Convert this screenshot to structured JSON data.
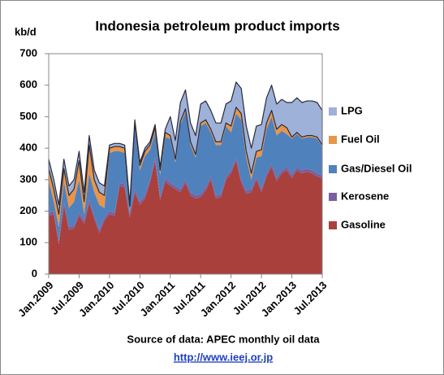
{
  "chart_data": {
    "type": "stacked_area",
    "title": "Indonesia petroleum product imports",
    "y_label": "kb/d",
    "source": "Source of data: APEC monthly oil data",
    "link": "http://www.ieej.or.jp",
    "categories": [
      "Jan.2009",
      null,
      null,
      null,
      null,
      null,
      "Jul.2009",
      null,
      null,
      null,
      null,
      null,
      "Jan.2010",
      null,
      null,
      null,
      null,
      null,
      "Jul.2010",
      null,
      null,
      null,
      null,
      null,
      "Jan.2011",
      null,
      null,
      null,
      null,
      null,
      "Jul.2011",
      null,
      null,
      null,
      null,
      null,
      "Jan.2012",
      null,
      null,
      null,
      null,
      null,
      "Jul.2012",
      null,
      null,
      null,
      null,
      null,
      "Jan.2013",
      null,
      null,
      null,
      null,
      null,
      "Jul.2013"
    ],
    "ylim": [
      0,
      700
    ],
    "yticks": [
      0,
      100,
      200,
      300,
      400,
      500,
      600,
      700
    ],
    "legend": "right",
    "series": [
      {
        "name": "Gasoline",
        "color": "#a9403c",
        "values": [
          185,
          190,
          95,
          220,
          140,
          145,
          185,
          160,
          225,
          175,
          130,
          170,
          190,
          185,
          280,
          275,
          180,
          260,
          220,
          240,
          290,
          360,
          235,
          295,
          280,
          270,
          260,
          290,
          250,
          240,
          245,
          265,
          300,
          240,
          245,
          300,
          320,
          360,
          290,
          255,
          260,
          300,
          260,
          310,
          340,
          295,
          320,
          330,
          305,
          330,
          320,
          325,
          320,
          310,
          305
        ]
      },
      {
        "name": "Kerosene",
        "color": "#7b5fa0",
        "values": [
          10,
          10,
          10,
          10,
          10,
          10,
          10,
          10,
          10,
          10,
          10,
          10,
          10,
          10,
          10,
          10,
          10,
          10,
          10,
          10,
          10,
          10,
          10,
          10,
          10,
          10,
          10,
          10,
          10,
          10,
          10,
          10,
          10,
          10,
          10,
          10,
          10,
          10,
          10,
          10,
          10,
          10,
          10,
          10,
          10,
          10,
          10,
          10,
          10,
          10,
          10,
          10,
          10,
          10,
          10
        ]
      },
      {
        "name": "Gas/Diesel Oil",
        "color": "#4f81bd",
        "values": [
          100,
          30,
          45,
          65,
          60,
          75,
          105,
          20,
          85,
          75,
          80,
          30,
          185,
          195,
          100,
          100,
          10,
          195,
          100,
          125,
          95,
          80,
          70,
          130,
          140,
          75,
          205,
          215,
          150,
          120,
          215,
          205,
          140,
          160,
          155,
          160,
          120,
          140,
          190,
          105,
          30,
          60,
          105,
          140,
          150,
          135,
          125,
          105,
          115,
          105,
          100,
          100,
          105,
          110,
          90
        ]
      },
      {
        "name": "Fuel Oil",
        "color": "#e8954a",
        "values": [
          40,
          40,
          40,
          40,
          40,
          40,
          60,
          40,
          90,
          40,
          40,
          40,
          15,
          15,
          15,
          15,
          15,
          15,
          15,
          15,
          15,
          15,
          15,
          15,
          10,
          10,
          10,
          10,
          10,
          10,
          10,
          10,
          10,
          10,
          10,
          10,
          20,
          20,
          20,
          20,
          20,
          20,
          20,
          20,
          20,
          20,
          20,
          20,
          5,
          5,
          5,
          5,
          5,
          5,
          5
        ]
      },
      {
        "name": "LPG",
        "color": "#9eb1d9",
        "values": [
          30,
          30,
          30,
          30,
          30,
          30,
          30,
          30,
          30,
          30,
          30,
          30,
          10,
          10,
          10,
          10,
          10,
          10,
          10,
          10,
          10,
          10,
          10,
          10,
          60,
          60,
          60,
          60,
          60,
          60,
          60,
          60,
          60,
          60,
          60,
          60,
          80,
          80,
          80,
          80,
          80,
          80,
          80,
          80,
          80,
          80,
          80,
          80,
          110,
          110,
          110,
          110,
          110,
          110,
          110
        ]
      }
    ]
  }
}
